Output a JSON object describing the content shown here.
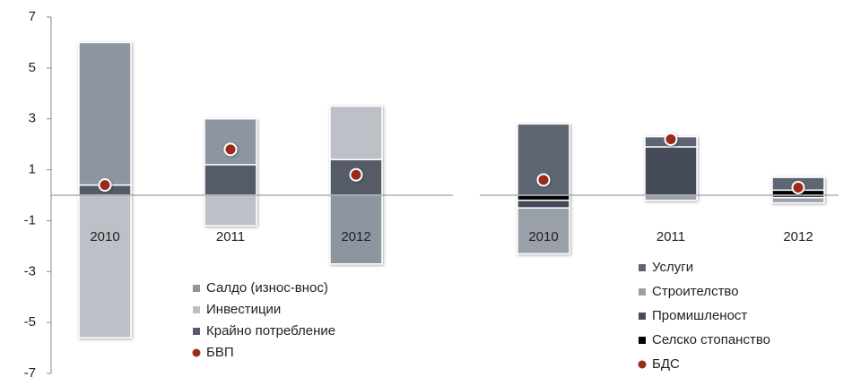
{
  "chart_data": [
    {
      "type": "bar",
      "stacked": true,
      "categories": [
        "2010",
        "2011",
        "2012"
      ],
      "ylim": [
        -7,
        7
      ],
      "yticks": [
        -7,
        -5,
        -3,
        -1,
        1,
        3,
        5,
        7
      ],
      "series": [
        {
          "name": "Салдо (износ-внос)",
          "color": "#8d95a1",
          "values": [
            5.6,
            1.8,
            -2.7
          ]
        },
        {
          "name": "Инвестиции",
          "color": "#bcc0c7",
          "values": [
            -5.6,
            -1.2,
            2.1
          ]
        },
        {
          "name": "Крайно потребление",
          "color": "#545b68",
          "values": [
            0.4,
            1.2,
            1.4
          ]
        },
        {
          "name": "БВП",
          "type": "point",
          "color": "#9b2a1e",
          "values": [
            0.4,
            1.8,
            0.8
          ]
        }
      ]
    },
    {
      "type": "bar",
      "stacked": true,
      "categories": [
        "2010",
        "2011",
        "2012"
      ],
      "ylim": [
        -7,
        7
      ],
      "series": [
        {
          "name": "Услуги",
          "color": "#5f6673",
          "values": [
            2.8,
            0.4,
            0.5
          ]
        },
        {
          "name": "Строителство",
          "color": "#9aa0aa",
          "values": [
            -1.8,
            -0.2,
            -0.2
          ]
        },
        {
          "name": "Промишленост",
          "color": "#454c59",
          "values": [
            -0.3,
            1.9,
            -0.1
          ]
        },
        {
          "name": "Селско стопанство",
          "color": "#000000",
          "values": [
            -0.2,
            0,
            0.2
          ]
        },
        {
          "name": "БДС",
          "type": "point",
          "color": "#9b2a1e",
          "values": [
            0.6,
            2.2,
            0.3
          ]
        }
      ]
    }
  ]
}
